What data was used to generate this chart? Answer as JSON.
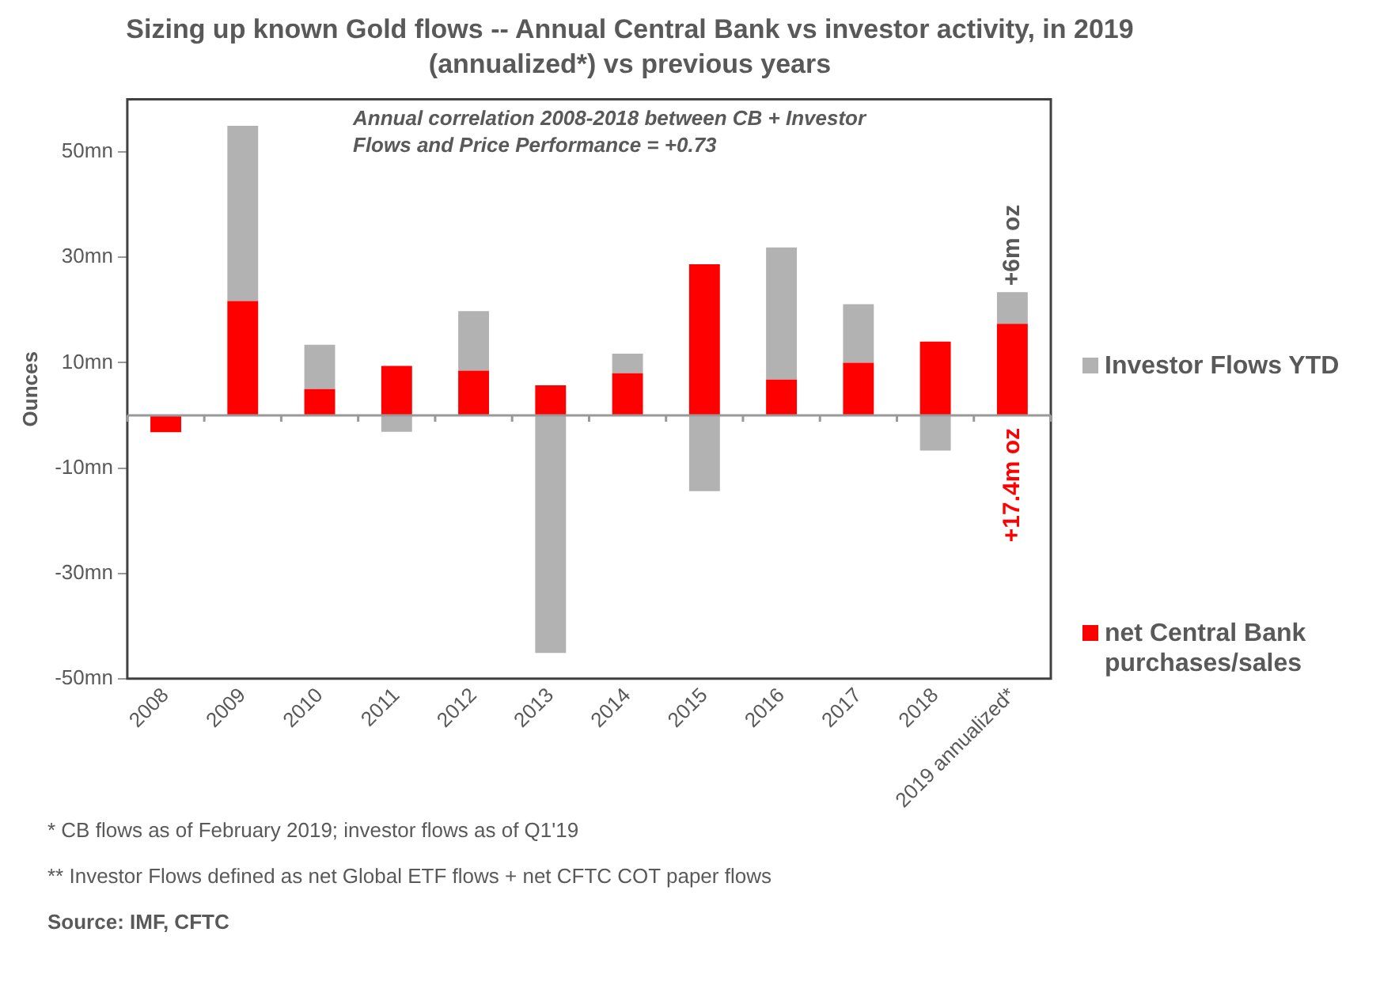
{
  "chart_data": {
    "type": "bar",
    "title": "Sizing up known Gold flows -- Annual Central Bank vs investor activity, in 2019 (annualized*) vs previous years",
    "ylabel": "Ounces",
    "categories": [
      "2008",
      "2009",
      "2010",
      "2011",
      "2012",
      "2013",
      "2014",
      "2015",
      "2016",
      "2017",
      "2018",
      "2019 annualized*"
    ],
    "stacked": true,
    "series": [
      {
        "name": "net Central Bank purchases/sales",
        "color": "#ff0000",
        "values": [
          -3.2,
          21.7,
          5.0,
          9.4,
          8.5,
          5.7,
          8.0,
          28.7,
          6.8,
          10.0,
          14.0,
          17.4
        ],
        "value_labels": [
          null,
          null,
          null,
          null,
          null,
          null,
          null,
          null,
          null,
          null,
          null,
          "+17.4m oz"
        ]
      },
      {
        "name": "Investor Flows YTD",
        "color": "#b2b2b2",
        "values": [
          null,
          33.3,
          8.4,
          -3.1,
          11.3,
          -45.1,
          3.7,
          -14.4,
          25.1,
          11.1,
          -6.7,
          6
        ],
        "value_labels": [
          null,
          null,
          null,
          null,
          null,
          null,
          null,
          null,
          null,
          null,
          null,
          "+6m oz"
        ]
      }
    ],
    "ylim": [
      -50,
      60
    ],
    "yticks": [
      {
        "value": -50,
        "label": "-50mn"
      },
      {
        "value": -30,
        "label": "-30mn"
      },
      {
        "value": -10,
        "label": "-10mn"
      },
      {
        "value": 10,
        "label": "10mn"
      },
      {
        "value": 30,
        "label": "30mn"
      },
      {
        "value": 50,
        "label": "50mn"
      }
    ],
    "grid": false,
    "legend": "right",
    "annotations": [
      "Annual correlation 2008-2018 between CB + Investor Flows and Price Performance = +0.73",
      "* CB flows as of February 2019; investor flows as of Q1'19",
      "** Investor Flows defined as net Global ETF flows + net CFTC COT paper flows",
      "Source: IMF, CFTC"
    ]
  }
}
